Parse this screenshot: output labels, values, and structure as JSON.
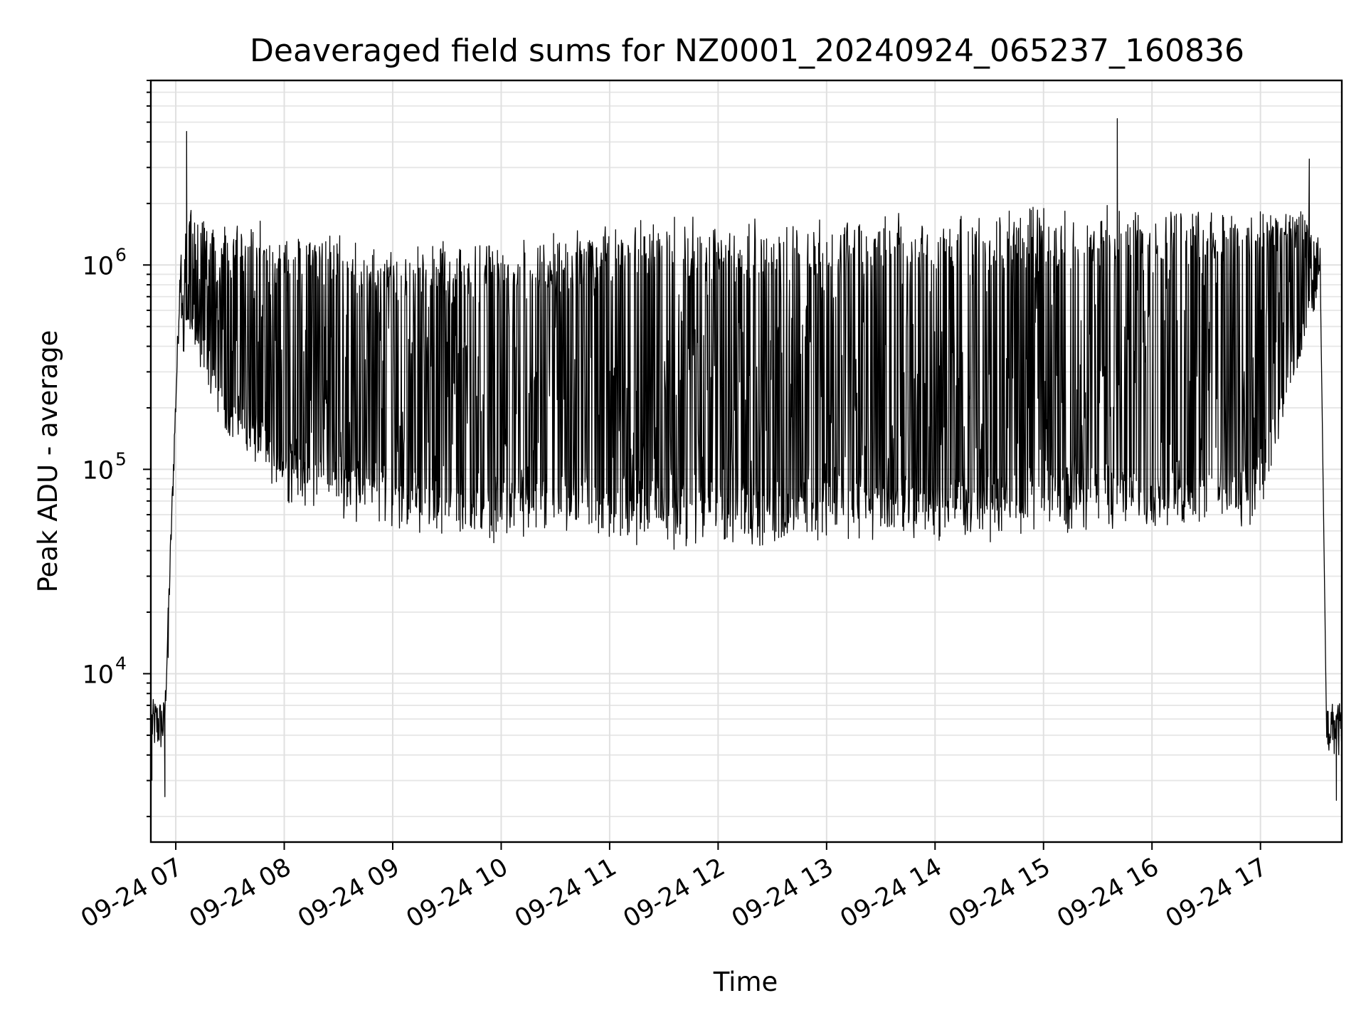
{
  "chart_data": {
    "type": "line",
    "title": "Deaveraged field sums for NZ0001_20240924_065237_160836",
    "xlabel": "Time",
    "ylabel": "Peak ADU - average",
    "yscale": "log",
    "ylim": [
      1500,
      8000000
    ],
    "xlim_hours": [
      6.77,
      17.75
    ],
    "grid": "major and minor",
    "legend": "none",
    "line_color": "#000000",
    "x_ticks": [
      {
        "hour": 7,
        "label": "09-24 07"
      },
      {
        "hour": 8,
        "label": "09-24 08"
      },
      {
        "hour": 9,
        "label": "09-24 09"
      },
      {
        "hour": 10,
        "label": "09-24 10"
      },
      {
        "hour": 11,
        "label": "09-24 11"
      },
      {
        "hour": 12,
        "label": "09-24 12"
      },
      {
        "hour": 13,
        "label": "09-24 13"
      },
      {
        "hour": 14,
        "label": "09-24 14"
      },
      {
        "hour": 15,
        "label": "09-24 15"
      },
      {
        "hour": 16,
        "label": "09-24 16"
      },
      {
        "hour": 17,
        "label": "09-24 17"
      }
    ],
    "y_ticks": [
      {
        "value": 10000,
        "base": "10",
        "exp": "4"
      },
      {
        "value": 100000,
        "base": "10",
        "exp": "5"
      },
      {
        "value": 1000000,
        "base": "10",
        "exp": "6"
      }
    ],
    "envelope": {
      "time_hours": [
        6.88,
        7.1,
        7.5,
        8.0,
        8.5,
        9.0,
        9.5,
        10.0,
        10.5,
        11.0,
        11.5,
        12.0,
        12.5,
        13.0,
        13.5,
        14.0,
        14.5,
        15.0,
        15.5,
        16.0,
        16.5,
        17.0,
        17.4,
        17.55
      ],
      "baseline": [
        6000,
        500000,
        150000,
        80000,
        65000,
        58000,
        52000,
        50000,
        48000,
        46000,
        45000,
        45000,
        47000,
        50000,
        48000,
        47000,
        48000,
        52000,
        55000,
        55000,
        55000,
        60000,
        400000,
        900000
      ],
      "peaks": [
        8000,
        1800000,
        1500000,
        1400000,
        1300000,
        1100000,
        1200000,
        1200000,
        1300000,
        1500000,
        1600000,
        1500000,
        1500000,
        1600000,
        1600000,
        1650000,
        1700000,
        1750000,
        1750000,
        1750000,
        1750000,
        1750000,
        1700000,
        1200000
      ]
    },
    "spikes": [
      {
        "hour": 6.9,
        "value": 2500
      },
      {
        "hour": 6.93,
        "value": 12000
      },
      {
        "hour": 7.1,
        "value": 4500000
      },
      {
        "hour": 15.68,
        "value": 5200000
      },
      {
        "hour": 17.45,
        "value": 3300000
      },
      {
        "hour": 17.7,
        "value": 2400
      }
    ],
    "tail": {
      "hour_start": 17.55,
      "hour_end": 17.75,
      "level": 5500
    }
  }
}
